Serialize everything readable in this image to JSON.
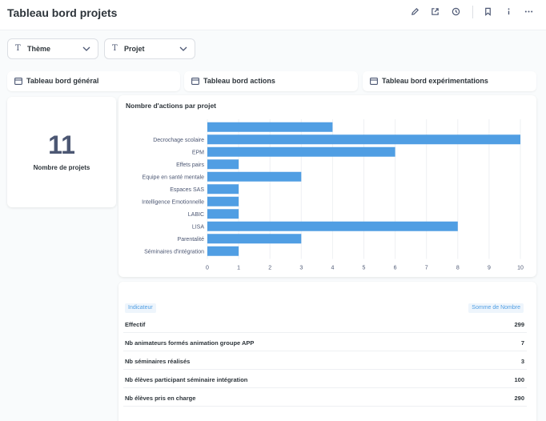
{
  "header": {
    "title": "Tableau bord projets",
    "icons": [
      "edit-icon",
      "share-icon",
      "history-icon",
      "bookmark-icon",
      "info-icon",
      "more-icon"
    ]
  },
  "filters": [
    {
      "label": "Thème",
      "icon": "text-type-icon"
    },
    {
      "label": "Projet",
      "icon": "text-type-icon"
    }
  ],
  "tabs": [
    {
      "label": "Tableau bord général"
    },
    {
      "label": "Tableau bord actions"
    },
    {
      "label": "Tableau bord expérimentations"
    }
  ],
  "scalar": {
    "value": "11",
    "label": "Nombre de projets"
  },
  "chart_data": {
    "type": "bar",
    "orientation": "horizontal",
    "title": "Nombre d'actions par projet",
    "categories": [
      "",
      "Decrochage scolaire",
      "EPM",
      "Effets pairs",
      "Equipe en santé mentale",
      "Espaces SAS",
      "Intelligence Emotionnelle",
      "LABIC",
      "LISA",
      "Parentalité",
      "Séminaires d'intégration"
    ],
    "values": [
      4,
      10,
      6,
      1,
      3,
      1,
      1,
      1,
      8,
      3,
      1
    ],
    "xlim": [
      0,
      10
    ],
    "xticks": [
      "0",
      "1",
      "2",
      "3",
      "4",
      "5",
      "6",
      "7",
      "8",
      "9",
      "10"
    ],
    "grid": true,
    "color": "#509ee3"
  },
  "table": {
    "col1": "Indicateur",
    "col2": "Somme de Nombre",
    "rows": [
      {
        "name": "Effectif",
        "value": "299"
      },
      {
        "name": "Nb animateurs formés animation groupe APP",
        "value": "7"
      },
      {
        "name": "Nb séminaires réalisés",
        "value": "3"
      },
      {
        "name": "Nb élèves participant séminaire intégration",
        "value": "100"
      },
      {
        "name": "Nb élèves pris en charge",
        "value": "290"
      }
    ]
  },
  "colors": {
    "accent": "#509ee3",
    "text": "#2e353b",
    "muted": "#4c5773"
  }
}
